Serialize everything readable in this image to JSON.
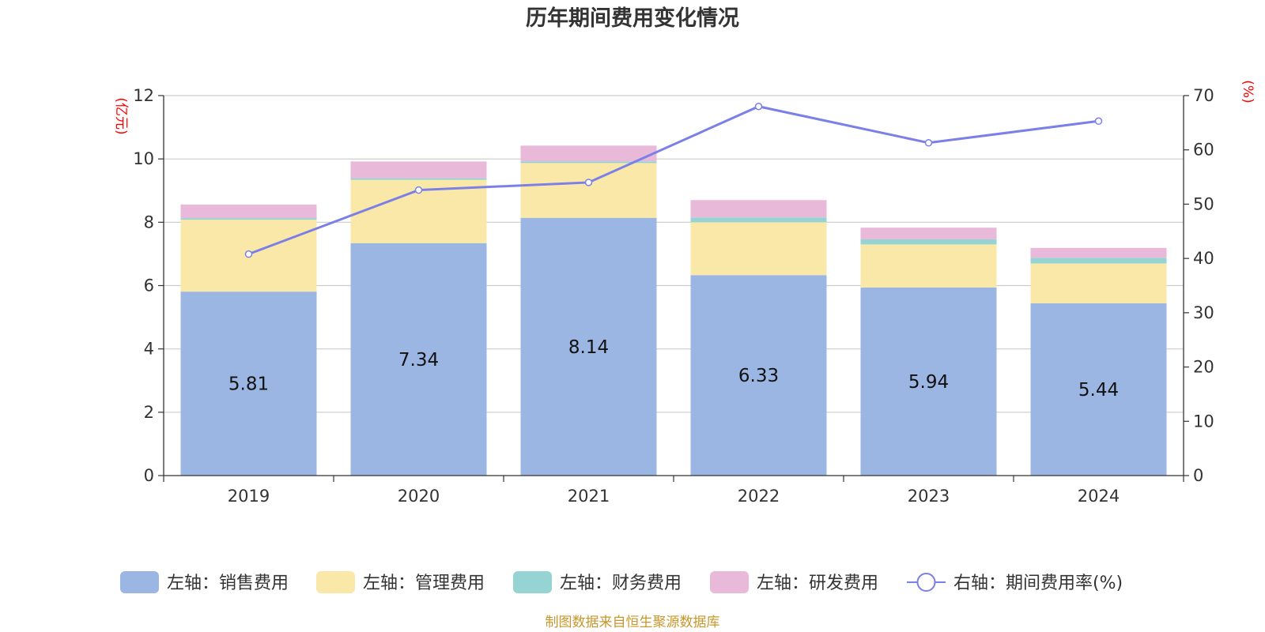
{
  "chart_data": {
    "type": "bar",
    "title": "历年期间费用变化情况",
    "categories": [
      "2019",
      "2020",
      "2021",
      "2022",
      "2023",
      "2024"
    ],
    "y_left": {
      "unit": "(亿元)",
      "ticks": [
        "0",
        "2",
        "4",
        "6",
        "8",
        "10",
        "12"
      ],
      "range": [
        0,
        12
      ]
    },
    "y_right": {
      "unit": "(%)",
      "ticks": [
        "0",
        "10",
        "20",
        "30",
        "40",
        "50",
        "60",
        "70"
      ],
      "range": [
        0,
        70
      ]
    },
    "series": [
      {
        "name": "左轴：销售费用",
        "type": "bar",
        "color": "#9bb6e2",
        "values": [
          5.81,
          7.34,
          8.14,
          6.33,
          5.94,
          5.44
        ],
        "labels": [
          "5.81",
          "7.34",
          "8.14",
          "6.33",
          "5.94",
          "5.44"
        ]
      },
      {
        "name": "左轴：管理费用",
        "type": "bar",
        "color": "#f9e8a8",
        "values": [
          2.27,
          2.0,
          1.73,
          1.67,
          1.36,
          1.26
        ]
      },
      {
        "name": "左轴：财务费用",
        "type": "bar",
        "color": "#96d3d3",
        "values": [
          0.05,
          0.05,
          0.05,
          0.15,
          0.16,
          0.18
        ]
      },
      {
        "name": "左轴：研发费用",
        "type": "bar",
        "color": "#e9b9da",
        "values": [
          0.43,
          0.53,
          0.5,
          0.55,
          0.37,
          0.31
        ]
      },
      {
        "name": "右轴：期间费用率(%)",
        "type": "line",
        "axis": "right",
        "color": "#7b7fe8",
        "values": [
          40.8,
          52.6,
          54.0,
          68.0,
          61.3,
          65.3
        ]
      }
    ],
    "legend_position": "bottom",
    "grid": true
  },
  "source": "制图数据来自恒生聚源数据库"
}
